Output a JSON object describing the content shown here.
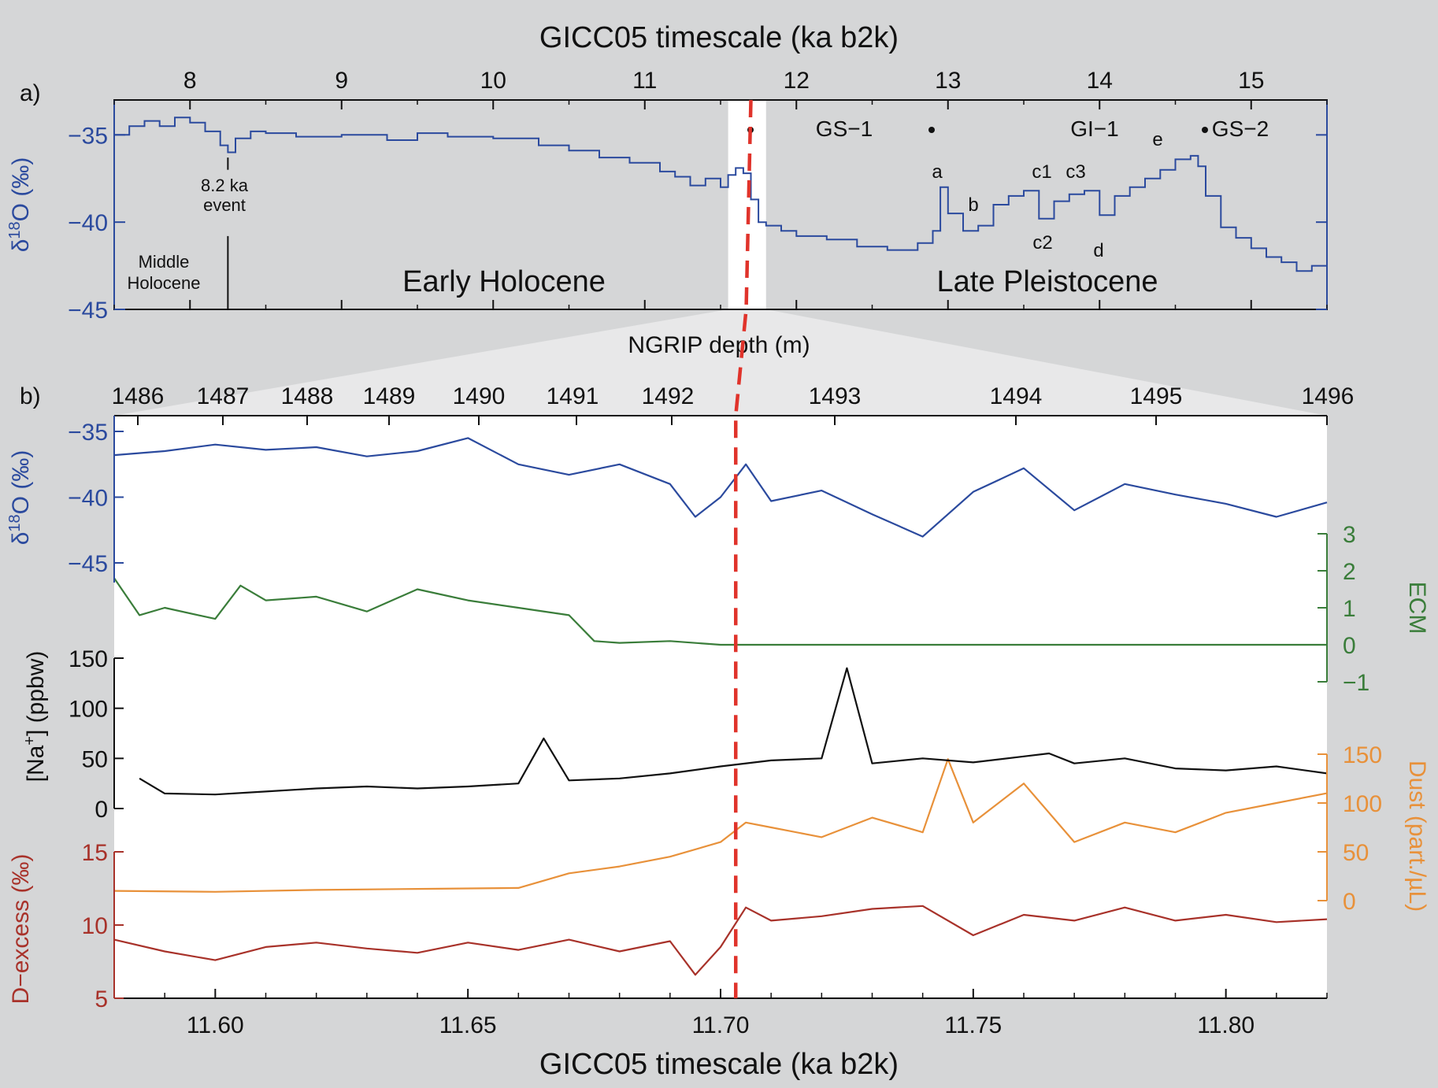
{
  "chart_data": [
    {
      "panel": "a)",
      "type": "line",
      "title": "GICC05 timescale (ka b2k)",
      "x_ticks": [
        "8",
        "9",
        "10",
        "11",
        "12",
        "13",
        "14",
        "15"
      ],
      "xlim": [
        7.5,
        15.5
      ],
      "ylabel": "δ¹⁸O (‰)",
      "y_ticks": [
        "−35",
        "−40",
        "−45"
      ],
      "ylim": [
        -45,
        -33
      ],
      "series": [
        {
          "color": "#2b4a9e",
          "x": [
            7.5,
            7.6,
            7.7,
            7.8,
            7.9,
            8.0,
            8.1,
            8.2,
            8.25,
            8.3,
            8.4,
            8.5,
            8.7,
            9.0,
            9.3,
            9.5,
            9.7,
            10.0,
            10.3,
            10.5,
            10.7,
            10.9,
            11.1,
            11.2,
            11.3,
            11.4,
            11.5,
            11.55,
            11.6,
            11.65,
            11.7,
            11.75,
            11.8,
            11.9,
            12.0,
            12.2,
            12.4,
            12.6,
            12.8,
            12.9,
            12.95,
            13.0,
            13.1,
            13.2,
            13.3,
            13.4,
            13.5,
            13.6,
            13.7,
            13.8,
            13.9,
            14.0,
            14.1,
            14.2,
            14.3,
            14.4,
            14.5,
            14.6,
            14.65,
            14.7,
            14.8,
            14.9,
            15.0,
            15.1,
            15.2,
            15.3,
            15.4,
            15.5
          ],
          "values": [
            -35.0,
            -34.5,
            -34.2,
            -34.5,
            -34.0,
            -34.3,
            -34.8,
            -35.6,
            -36.0,
            -35.2,
            -34.8,
            -34.9,
            -35.1,
            -35.0,
            -35.3,
            -34.9,
            -35.1,
            -35.2,
            -35.6,
            -35.9,
            -36.3,
            -36.6,
            -37.1,
            -37.4,
            -37.9,
            -37.5,
            -38.0,
            -37.3,
            -36.9,
            -37.2,
            -38.7,
            -40.0,
            -40.2,
            -40.5,
            -40.8,
            -41.0,
            -41.4,
            -41.6,
            -41.2,
            -40.5,
            -38.0,
            -39.5,
            -40.5,
            -40.2,
            -39.0,
            -38.5,
            -38.2,
            -39.8,
            -38.8,
            -38.4,
            -38.2,
            -39.6,
            -38.5,
            -38.0,
            -37.5,
            -37.0,
            -36.4,
            -36.2,
            -36.8,
            -38.5,
            -40.3,
            -40.9,
            -41.5,
            -42.0,
            -42.3,
            -42.8,
            -42.5,
            -41.5
          ]
        }
      ],
      "annotations": [
        "Middle Holocene",
        "8.2 ka event",
        "Early Holocene",
        "Late Pleistocene",
        "GS−1",
        "GI−1",
        "GS−2",
        "a",
        "b",
        "c1",
        "c2",
        "c3",
        "d",
        "e"
      ],
      "transition_marker_x": 11.7
    },
    {
      "panel": "b)",
      "type": "line",
      "top_axis_title": "NGRIP depth (m)",
      "top_ticks": [
        "1486",
        "1487",
        "1488",
        "1489",
        "1490",
        "1491",
        "1492",
        "1493",
        "1494",
        "1495",
        "1496"
      ],
      "xlabel": "GICC05 timescale (ka b2k)",
      "x_ticks": [
        "11.60",
        "11.65",
        "11.70",
        "11.75",
        "11.80"
      ],
      "xlim": [
        11.58,
        11.82
      ],
      "transition_marker_x": 11.703,
      "series": [
        {
          "name": "δ¹⁸O (‰)",
          "color": "#2b4a9e",
          "ylim": [
            -46,
            -35
          ],
          "y_ticks": [
            "−35",
            "−40",
            "−45"
          ],
          "x": [
            11.58,
            11.59,
            11.6,
            11.61,
            11.62,
            11.63,
            11.64,
            11.65,
            11.66,
            11.67,
            11.68,
            11.69,
            11.695,
            11.7,
            11.705,
            11.71,
            11.72,
            11.73,
            11.74,
            11.75,
            11.76,
            11.77,
            11.78,
            11.79,
            11.8,
            11.81,
            11.82
          ],
          "values": [
            -36.8,
            -36.5,
            -36.0,
            -36.4,
            -36.2,
            -36.9,
            -36.5,
            -35.5,
            -37.5,
            -38.3,
            -37.5,
            -39.0,
            -41.5,
            -40.0,
            -37.5,
            -40.3,
            -39.5,
            -41.3,
            -43.0,
            -39.6,
            -37.8,
            -41.0,
            -39.0,
            -39.8,
            -40.5,
            -41.5,
            -40.4
          ]
        },
        {
          "name": "ECM",
          "color": "#3a7d3a",
          "ylim": [
            -1,
            3
          ],
          "y_ticks": [
            "3",
            "2",
            "1",
            "0",
            "−1"
          ],
          "x": [
            11.58,
            11.585,
            11.59,
            11.6,
            11.605,
            11.61,
            11.62,
            11.63,
            11.64,
            11.65,
            11.66,
            11.67,
            11.675,
            11.68,
            11.69,
            11.7,
            11.71,
            11.75,
            11.8,
            11.82
          ],
          "values": [
            1.8,
            0.8,
            1.0,
            0.7,
            1.6,
            1.2,
            1.3,
            0.9,
            1.5,
            1.2,
            1.0,
            0.8,
            0.1,
            0.05,
            0.1,
            0.0,
            0.0,
            0.0,
            0.0,
            0.0
          ]
        },
        {
          "name": "[Na⁺] (ppbw)",
          "color": "#111111",
          "ylim": [
            0,
            150
          ],
          "y_ticks": [
            "150",
            "100",
            "50",
            "0"
          ],
          "x": [
            11.585,
            11.59,
            11.6,
            11.61,
            11.62,
            11.63,
            11.64,
            11.65,
            11.66,
            11.665,
            11.67,
            11.68,
            11.69,
            11.7,
            11.71,
            11.72,
            11.725,
            11.73,
            11.74,
            11.75,
            11.76,
            11.765,
            11.77,
            11.78,
            11.79,
            11.8,
            11.81,
            11.82
          ],
          "values": [
            30,
            15,
            14,
            17,
            20,
            22,
            20,
            22,
            25,
            70,
            28,
            30,
            35,
            42,
            48,
            50,
            140,
            45,
            50,
            46,
            52,
            55,
            45,
            50,
            40,
            38,
            42,
            35
          ]
        },
        {
          "name": "Dust (part./µL)",
          "color": "#e8913a",
          "ylim": [
            0,
            150
          ],
          "y_ticks": [
            "150",
            "100",
            "50",
            "0"
          ],
          "x": [
            11.58,
            11.6,
            11.62,
            11.64,
            11.66,
            11.67,
            11.68,
            11.69,
            11.7,
            11.705,
            11.71,
            11.72,
            11.73,
            11.74,
            11.745,
            11.75,
            11.76,
            11.77,
            11.78,
            11.79,
            11.8,
            11.81,
            11.82
          ],
          "values": [
            10,
            9,
            11,
            12,
            13,
            28,
            35,
            45,
            60,
            80,
            75,
            65,
            85,
            70,
            145,
            80,
            120,
            60,
            80,
            70,
            90,
            100,
            110
          ]
        },
        {
          "name": "D−excess (‰)",
          "color": "#a8322a",
          "ylim": [
            5,
            15
          ],
          "y_ticks": [
            "15",
            "10",
            "5"
          ],
          "x": [
            11.58,
            11.59,
            11.6,
            11.61,
            11.62,
            11.63,
            11.64,
            11.65,
            11.66,
            11.67,
            11.68,
            11.69,
            11.695,
            11.7,
            11.705,
            11.71,
            11.72,
            11.73,
            11.74,
            11.75,
            11.76,
            11.77,
            11.78,
            11.79,
            11.8,
            11.81,
            11.82
          ],
          "values": [
            9.0,
            8.2,
            7.6,
            8.5,
            8.8,
            8.4,
            8.1,
            8.8,
            8.3,
            9.0,
            8.2,
            8.9,
            6.6,
            8.5,
            11.2,
            10.3,
            10.6,
            11.1,
            11.3,
            9.3,
            10.7,
            10.3,
            11.2,
            10.3,
            10.7,
            10.2,
            10.4
          ]
        }
      ]
    }
  ]
}
